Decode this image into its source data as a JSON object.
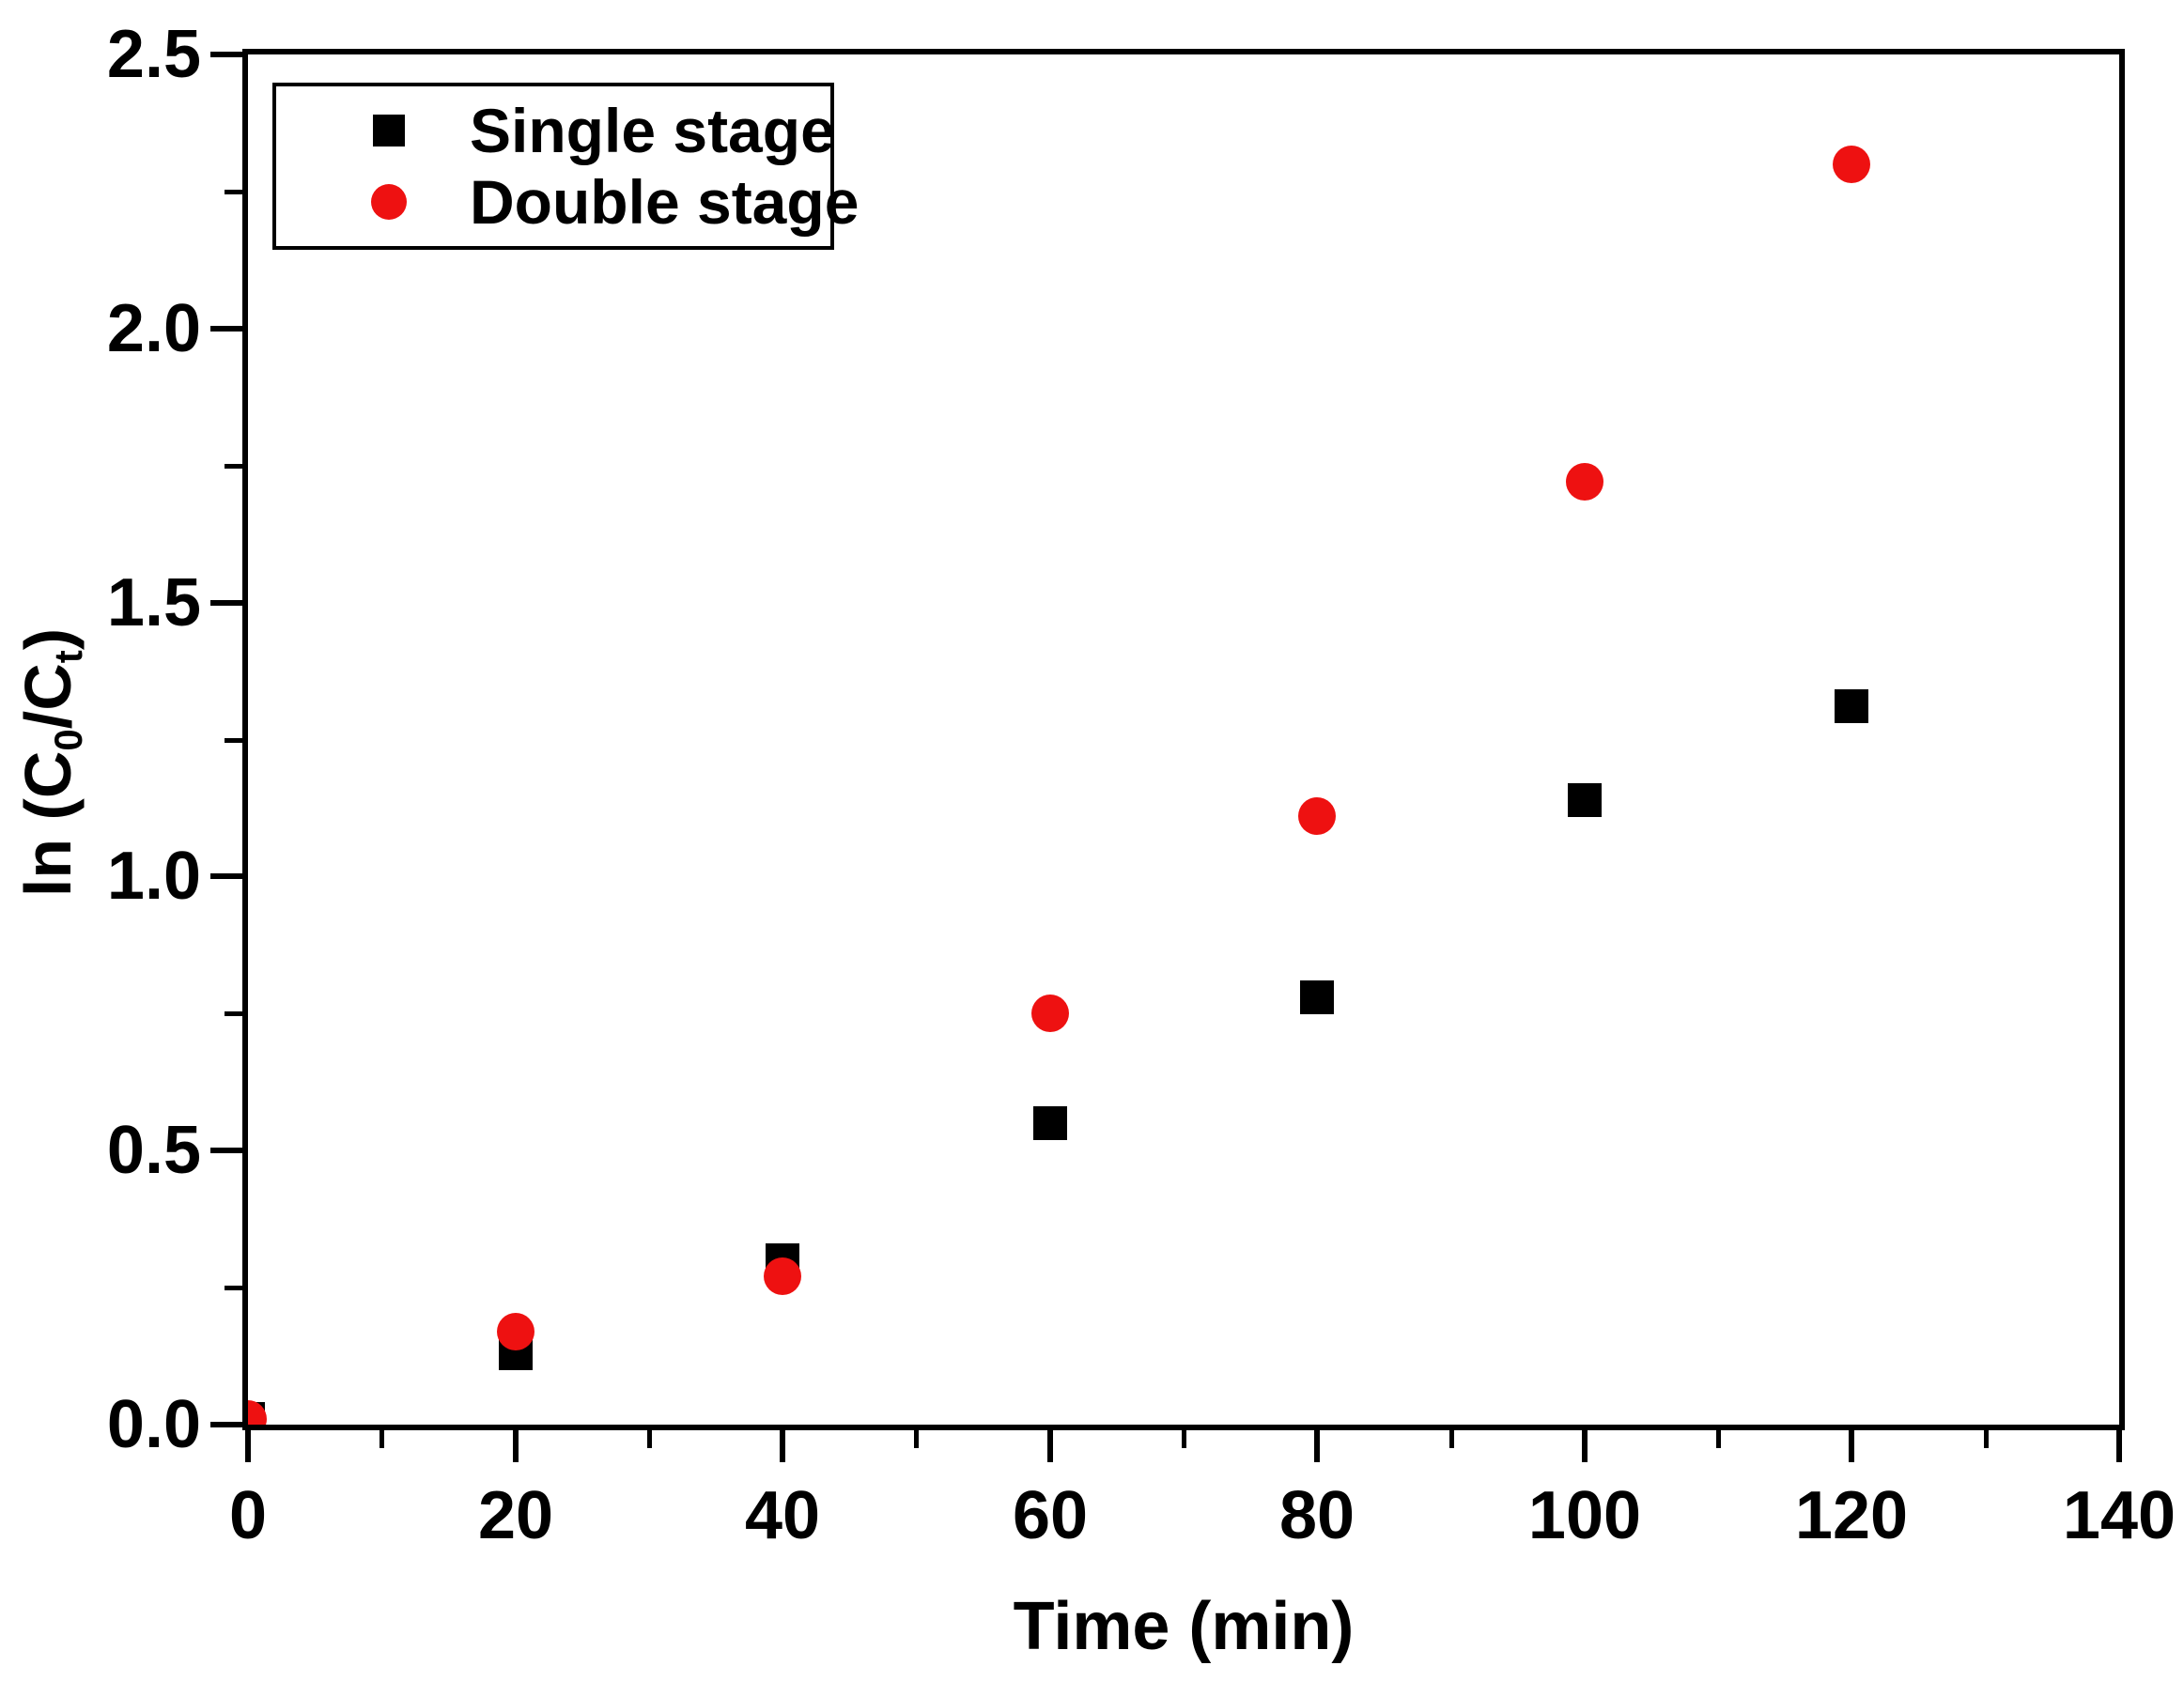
{
  "chart_data": {
    "type": "scatter",
    "title": "",
    "xlabel": "Time (min)",
    "ylabel_text": "ln (C0/Ct)",
    "ylabel": {
      "pre": "ln (C",
      "sub0": "0",
      "mid": "/C",
      "subt": "t",
      "post": ")"
    },
    "xlim": [
      0,
      140
    ],
    "ylim": [
      0.0,
      2.5
    ],
    "x_major_ticks": [
      0,
      20,
      40,
      60,
      80,
      100,
      120,
      140
    ],
    "x_tick_labels": [
      "0",
      "20",
      "40",
      "60",
      "80",
      "100",
      "120",
      "140"
    ],
    "x_minor_step": 10,
    "y_major_ticks": [
      0.0,
      0.5,
      1.0,
      1.5,
      2.0,
      2.5
    ],
    "y_tick_labels": [
      "0.0",
      "0.5",
      "1.0",
      "1.5",
      "2.0",
      "2.5"
    ],
    "y_minor_step": 0.25,
    "grid": false,
    "legend_position": "top-left",
    "colors": {
      "single_stage": "#000000",
      "double_stage": "#ee1111",
      "axis": "#000000",
      "background": "#ffffff"
    },
    "series": [
      {
        "name": "Single stage",
        "marker": "square",
        "color": "#000000",
        "points": [
          [
            0,
            0.01
          ],
          [
            20,
            0.13
          ],
          [
            40,
            0.3
          ],
          [
            60,
            0.55
          ],
          [
            80,
            0.78
          ],
          [
            100,
            1.14
          ],
          [
            120,
            1.31
          ]
        ]
      },
      {
        "name": "Double stage",
        "marker": "circle",
        "color": "#ee1111",
        "points": [
          [
            0,
            0.01
          ],
          [
            20,
            0.17
          ],
          [
            40,
            0.27
          ],
          [
            60,
            0.75
          ],
          [
            80,
            1.11
          ],
          [
            100,
            1.72
          ],
          [
            120,
            2.3
          ]
        ]
      }
    ]
  }
}
